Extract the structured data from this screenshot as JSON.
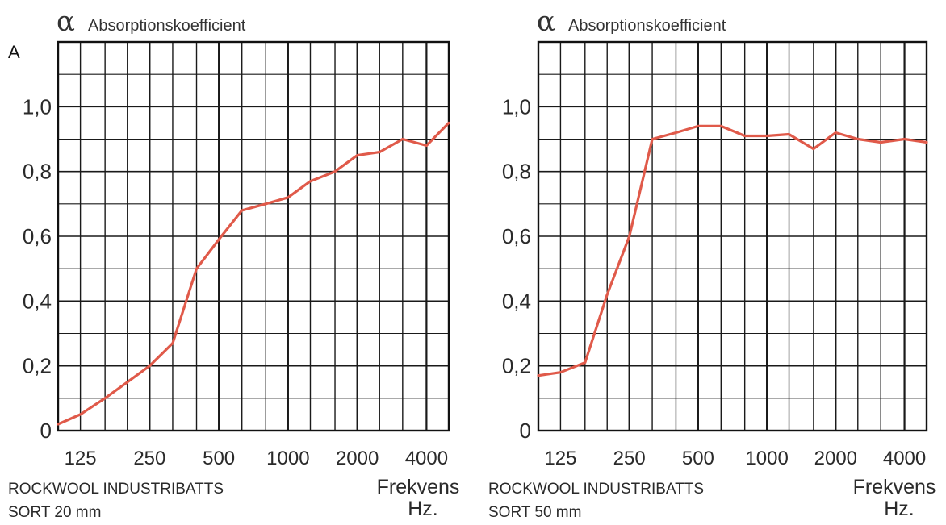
{
  "panel_letter": "A",
  "chart_data": [
    {
      "type": "line",
      "alpha_symbol": "α",
      "ylabel": "Absorptionskoefficient",
      "xlabel_line1": "Frekvens",
      "xlabel_line2": "Hz.",
      "caption_line1": "ROCKWOOL INDUSTRIBATTS",
      "caption_line2": "SORT 20 mm",
      "x_scale": "log (one-third octave bands)",
      "xlim": [
        100,
        5000
      ],
      "ylim": [
        0,
        1.2
      ],
      "x_ticks": [
        125,
        250,
        500,
        1000,
        2000,
        4000
      ],
      "x_tick_labels": [
        "125",
        "250",
        "500",
        "1000",
        "2000",
        "4000"
      ],
      "y_ticks": [
        0,
        0.2,
        0.4,
        0.6,
        0.8,
        1.0
      ],
      "y_tick_labels": [
        "0",
        "0,2",
        "0,4",
        "0,6",
        "0,8",
        "1,0"
      ],
      "grid": true,
      "line_color": "#e05a4a",
      "series": [
        {
          "x": [
            100,
            125,
            160,
            200,
            250,
            315,
            400,
            500,
            630,
            800,
            1000,
            1250,
            1600,
            2000,
            2500,
            3150,
            4000,
            5000
          ],
          "y": [
            0.02,
            0.05,
            0.1,
            0.15,
            0.2,
            0.27,
            0.5,
            0.59,
            0.68,
            0.7,
            0.72,
            0.77,
            0.8,
            0.85,
            0.86,
            0.9,
            0.88,
            0.95
          ]
        }
      ]
    },
    {
      "type": "line",
      "alpha_symbol": "α",
      "ylabel": "Absorptionskoefficient",
      "xlabel_line1": "Frekvens",
      "xlabel_line2": "Hz.",
      "caption_line1": "ROCKWOOL INDUSTRIBATTS",
      "caption_line2": "SORT 50 mm",
      "x_scale": "log (one-third octave bands)",
      "xlim": [
        100,
        5000
      ],
      "ylim": [
        0,
        1.2
      ],
      "x_ticks": [
        125,
        250,
        500,
        1000,
        2000,
        4000
      ],
      "x_tick_labels": [
        "125",
        "250",
        "500",
        "1000",
        "2000",
        "4000"
      ],
      "y_ticks": [
        0,
        0.2,
        0.4,
        0.6,
        0.8,
        1.0
      ],
      "y_tick_labels": [
        "0",
        "0,2",
        "0,4",
        "0,6",
        "0,8",
        "1,0"
      ],
      "grid": true,
      "line_color": "#e05a4a",
      "series": [
        {
          "x": [
            100,
            125,
            160,
            200,
            250,
            315,
            400,
            500,
            630,
            800,
            1000,
            1250,
            1600,
            2000,
            2500,
            3150,
            4000,
            5000
          ],
          "y": [
            0.17,
            0.18,
            0.21,
            0.42,
            0.6,
            0.9,
            0.92,
            0.94,
            0.94,
            0.91,
            0.91,
            0.915,
            0.87,
            0.92,
            0.9,
            0.89,
            0.9,
            0.89
          ]
        }
      ]
    }
  ]
}
